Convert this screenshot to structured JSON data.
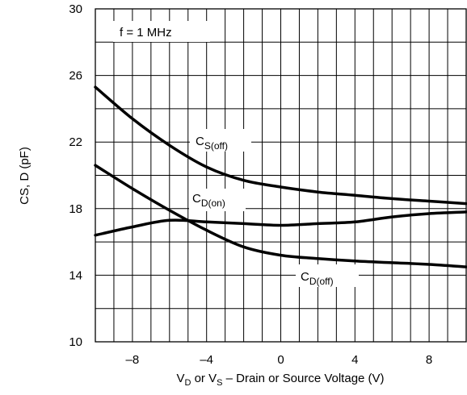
{
  "chart_data": {
    "type": "line",
    "annotation": "f = 1 MHz",
    "xlabel_parts": [
      {
        "text": "V",
        "sub": false
      },
      {
        "text": "D",
        "sub": true
      },
      {
        "text": " or V",
        "sub": false
      },
      {
        "text": "S",
        "sub": true
      },
      {
        "text": " – Drain or Source Voltage (V)",
        "sub": false
      }
    ],
    "ylabel": "CS, D (pF)",
    "xlim": [
      -10,
      10
    ],
    "ylim": [
      10,
      30
    ],
    "x_ticks": [
      -8,
      -4,
      0,
      4,
      8
    ],
    "x_tick_labels": [
      "–8",
      "–4",
      "0",
      "4",
      "8"
    ],
    "y_ticks": [
      10,
      14,
      18,
      22,
      26,
      30
    ],
    "y_tick_labels": [
      "10",
      "14",
      "18",
      "22",
      "26",
      "30"
    ],
    "grid": true,
    "series": [
      {
        "label_base": "C",
        "label_sub": "S(off)",
        "x": [
          -10,
          -8,
          -6,
          -4,
          -2,
          0,
          2,
          4,
          6,
          8,
          10
        ],
        "y": [
          25.3,
          23.4,
          21.8,
          20.5,
          19.7,
          19.3,
          19.0,
          18.8,
          18.6,
          18.45,
          18.3
        ]
      },
      {
        "label_base": "C",
        "label_sub": "D(on)",
        "x": [
          -10,
          -8,
          -6,
          -4,
          -2,
          0,
          2,
          4,
          6,
          8,
          10
        ],
        "y": [
          16.4,
          16.9,
          17.3,
          17.2,
          17.1,
          17.0,
          17.1,
          17.2,
          17.5,
          17.7,
          17.8
        ]
      },
      {
        "label_base": "C",
        "label_sub": "D(off)",
        "x": [
          -10,
          -8,
          -6,
          -4,
          -2,
          0,
          2,
          4,
          6,
          8,
          10
        ],
        "y": [
          20.6,
          19.2,
          17.9,
          16.7,
          15.7,
          15.2,
          15.0,
          14.85,
          14.75,
          14.65,
          14.5
        ]
      }
    ]
  }
}
